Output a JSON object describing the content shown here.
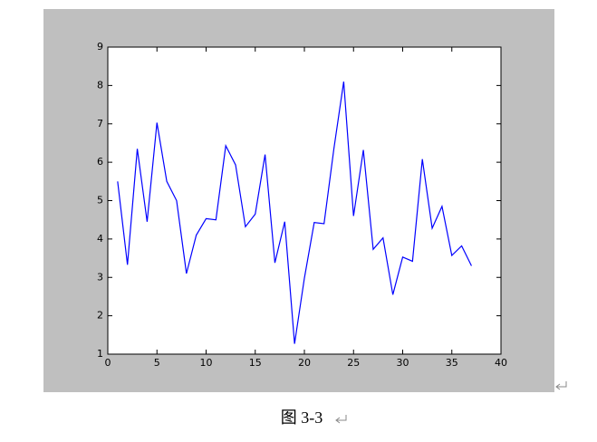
{
  "chart_data": {
    "type": "line",
    "x": [
      1,
      2,
      3,
      4,
      5,
      6,
      7,
      8,
      9,
      10,
      11,
      12,
      13,
      14,
      15,
      16,
      17,
      18,
      19,
      20,
      21,
      22,
      23,
      24,
      25,
      26,
      27,
      28,
      29,
      30,
      31,
      32,
      33,
      34,
      35,
      36,
      37
    ],
    "series": [
      {
        "color": "#0000ff",
        "values": [
          5.5,
          3.33,
          6.35,
          4.45,
          7.03,
          5.5,
          5.0,
          3.1,
          4.1,
          4.53,
          4.5,
          6.43,
          5.93,
          4.32,
          4.65,
          6.2,
          3.38,
          4.45,
          1.27,
          2.98,
          4.43,
          4.4,
          6.35,
          8.1,
          4.6,
          6.32,
          3.73,
          4.03,
          2.55,
          3.53,
          3.42,
          6.08,
          4.28,
          4.85,
          3.57,
          3.82,
          3.3
        ]
      }
    ],
    "xlim": [
      0,
      40
    ],
    "xticks": [
      0,
      5,
      10,
      15,
      20,
      25,
      30,
      35,
      40
    ],
    "ylim": [
      1,
      9
    ],
    "yticks": [
      1,
      2,
      3,
      4,
      5,
      6,
      7,
      8,
      9
    ],
    "grid": false
  },
  "caption": "图 3-3"
}
